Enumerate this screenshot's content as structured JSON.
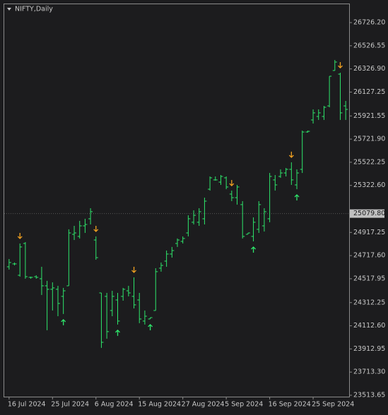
{
  "chart_data": {
    "type": "ohlc",
    "title": "NIFTY,Daily",
    "categories": [
      "16 Jul 2024",
      null,
      null,
      null,
      null,
      null,
      null,
      null,
      "25 Jul 2024",
      null,
      null,
      null,
      null,
      null,
      null,
      null,
      "6 Aug 2024",
      null,
      null,
      null,
      null,
      null,
      null,
      null,
      "15 Aug 2024",
      null,
      null,
      null,
      null,
      null,
      null,
      null,
      "27 Aug 2024",
      null,
      null,
      null,
      null,
      null,
      null,
      null,
      "5 Sep 2024",
      null,
      null,
      null,
      null,
      null,
      null,
      null,
      "16 Sep 2024",
      null,
      null,
      null,
      null,
      null,
      null,
      null,
      "25 Sep 2024",
      null,
      null,
      null,
      null,
      null,
      null
    ],
    "open": [
      24621,
      24646,
      24548,
      24822,
      24530,
      24536,
      24518,
      24457,
      24427,
      24427,
      24366,
      24457,
      24901,
      24883,
      24974,
      25035,
      24852,
      24396,
      24366,
      24244,
      24335,
      24366,
      24414,
      24366,
      24335,
      24153,
      24171,
      24244,
      24609,
      24670,
      24731,
      24822,
      24840,
      24913,
      25005,
      25005,
      25035,
      25290,
      25370,
      25351,
      25388,
      25248,
      25217,
      25157,
      24901,
      24883,
      24944,
      24974,
      25035,
      25370,
      25400,
      25430,
      25461,
      25327,
      25461,
      25783,
      25887,
      25917,
      25917,
      26008,
      26313,
      26282,
      26008
    ],
    "high": [
      24688,
      24658,
      24822,
      24834,
      24536,
      24548,
      24621,
      24500,
      24487,
      24457,
      24439,
      24944,
      24974,
      25017,
      25035,
      25126,
      24883,
      24396,
      24396,
      24414,
      24396,
      24439,
      24457,
      24530,
      24396,
      24244,
      24183,
      24609,
      24658,
      24761,
      24792,
      24865,
      24883,
      25065,
      25108,
      25126,
      25217,
      25400,
      25400,
      25412,
      25400,
      25278,
      25327,
      25187,
      24913,
      25047,
      25187,
      25126,
      25430,
      25412,
      25461,
      25473,
      25522,
      25461,
      25795,
      25795,
      25978,
      25978,
      26008,
      26264,
      26404,
      26294,
      26051
    ],
    "low": [
      24597,
      24633,
      24536,
      24518,
      24518,
      24518,
      24378,
      24074,
      24244,
      24195,
      24214,
      24457,
      24852,
      24865,
      24913,
      24986,
      24682,
      23922,
      24001,
      24195,
      24123,
      24329,
      24366,
      24262,
      24135,
      24123,
      24171,
      24244,
      24579,
      24621,
      24700,
      24792,
      24822,
      24883,
      24986,
      24974,
      24986,
      25278,
      25364,
      25327,
      25290,
      25187,
      25157,
      24865,
      24901,
      24840,
      24913,
      24925,
      25005,
      25278,
      25388,
      25400,
      25327,
      25290,
      25430,
      25777,
      25856,
      25887,
      25887,
      25996,
      26313,
      25887,
      25887
    ],
    "close": [
      24658,
      24646,
      24792,
      24536,
      24530,
      24530,
      24457,
      24427,
      24439,
      24305,
      24414,
      24913,
      24913,
      24974,
      24986,
      25096,
      24700,
      23970,
      24062,
      24366,
      24153,
      24427,
      24396,
      24293,
      24171,
      24195,
      24183,
      24579,
      24633,
      24731,
      24761,
      24852,
      24865,
      25035,
      25065,
      25096,
      25187,
      25388,
      25370,
      25400,
      25309,
      25217,
      25309,
      24883,
      24913,
      25005,
      25157,
      25096,
      25400,
      25327,
      25430,
      25461,
      25370,
      25430,
      25783,
      25789,
      25948,
      25948,
      25996,
      26264,
      26386,
      25948,
      25978
    ],
    "color": "#2ee66b",
    "up_arrows": [
      10,
      20,
      26,
      45,
      53
    ],
    "up_arrow_color": "#2ee66b",
    "down_arrows": [
      2,
      16,
      23,
      41,
      52,
      61
    ],
    "down_arrow_color": "#f0a020",
    "current_price": {
      "value": 25079.8,
      "label": "25079.80"
    },
    "ylim": [
      23501.5,
      26884.5
    ],
    "yticks": [
      {
        "value": 26726.2,
        "label": "26726.20"
      },
      {
        "value": 26526.55,
        "label": "26526.55"
      },
      {
        "value": 26326.9,
        "label": "26326.90"
      },
      {
        "value": 26127.25,
        "label": "26127.25"
      },
      {
        "value": 25921.55,
        "label": "25921.55"
      },
      {
        "value": 25721.9,
        "label": "25721.90"
      },
      {
        "value": 25522.25,
        "label": "25522.25"
      },
      {
        "value": 25322.6,
        "label": "25322.60"
      },
      {
        "value": 24917.25,
        "label": "24917.25"
      },
      {
        "value": 24717.6,
        "label": "24717.60"
      },
      {
        "value": 24517.95,
        "label": "24517.95"
      },
      {
        "value": 24312.25,
        "label": "24312.25"
      },
      {
        "value": 24112.6,
        "label": "24112.60"
      },
      {
        "value": 23912.95,
        "label": "23912.95"
      },
      {
        "value": 23713.3,
        "label": "23713.30"
      },
      {
        "value": 23513.65,
        "label": "23513.65"
      }
    ]
  }
}
